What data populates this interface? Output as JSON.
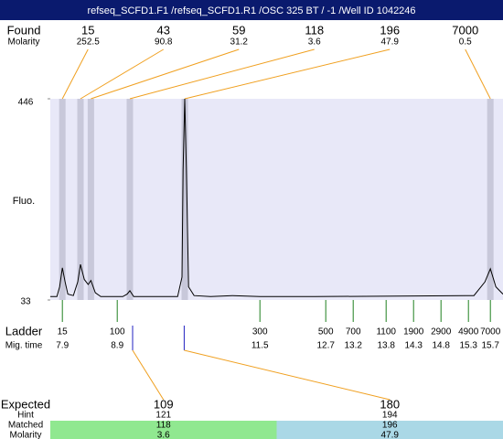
{
  "chart_data": {
    "type": "line",
    "title": "refseq_SCFD1.F1 /refseq_SCFD1.R1 /OSC 325 BT / -1 /Well ID 1042246",
    "y_label": "Fluo.",
    "ylim": [
      33,
      446
    ],
    "yticks": [
      446,
      33
    ],
    "xlim": [
      7.68,
      15.93
    ],
    "found": {
      "label": "Found",
      "molarity_label": "Molarity",
      "sizes": [
        15,
        43,
        59,
        118,
        196,
        7000
      ],
      "molarity": [
        252.5,
        90.8,
        31.2,
        3.6,
        47.9,
        0.5
      ],
      "times": [
        7.9,
        8.23,
        8.42,
        9.13,
        10.13,
        15.7
      ]
    },
    "ladder": {
      "label": "Ladder",
      "time_label": "Mig. time",
      "sizes": [
        15,
        100,
        300,
        500,
        700,
        1100,
        1900,
        2900,
        4900,
        7000
      ],
      "times": [
        7.9,
        8.9,
        11.5,
        12.7,
        13.2,
        13.8,
        14.3,
        14.8,
        15.3,
        15.7
      ]
    },
    "expected": {
      "label": "Expected",
      "hint_label": "Hint",
      "matched_label": "Matched",
      "molarity_label": "Molarity",
      "sizes": [
        109,
        180
      ],
      "hint": [
        121,
        194
      ],
      "matched": [
        118,
        196
      ],
      "molarity": [
        3.6,
        47.9
      ],
      "times": [
        9.18,
        10.12
      ]
    },
    "series": [
      {
        "name": "Fluo.",
        "color": "#000000",
        "x": [
          7.68,
          7.8,
          7.85,
          7.9,
          7.95,
          8.0,
          8.1,
          8.18,
          8.23,
          8.3,
          8.37,
          8.42,
          8.5,
          8.6,
          9.0,
          9.08,
          9.13,
          9.2,
          10.0,
          10.08,
          10.1,
          10.13,
          10.16,
          10.2,
          10.3,
          10.6,
          11.0,
          11.5,
          12.5,
          15.4,
          15.6,
          15.7,
          15.8,
          15.93
        ],
        "values": [
          40,
          40,
          60,
          99,
          70,
          45,
          42,
          70,
          106,
          75,
          65,
          73,
          48,
          40,
          40,
          45,
          52,
          40,
          40,
          80,
          300,
          446,
          300,
          60,
          42,
          40,
          42,
          40,
          40,
          42,
          70,
          97,
          60,
          45
        ]
      }
    ]
  }
}
